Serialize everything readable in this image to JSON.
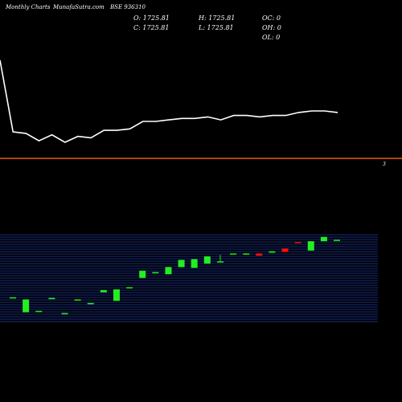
{
  "header": {
    "period": "Monthly Charts",
    "site": "MunafaSutra.com",
    "symbol": "BSE 936310"
  },
  "ohlc": {
    "open": "O: 1725.81",
    "close": "C: 1725.81",
    "high": "H: 1725.81",
    "low": "L: 1725.81",
    "oc": "OC: 0",
    "oh": "OH: 0",
    "ol": "OL: 0"
  },
  "colors": {
    "background": "#000000",
    "line": "#ffffff",
    "divider": "#e06010",
    "up": "#22ee22",
    "down": "#ee1111",
    "grid": "#1f3aa8"
  },
  "chart_data": [
    {
      "type": "line",
      "series": [
        {
          "values": [
            62,
            14,
            13,
            8,
            12,
            7,
            11,
            10,
            15,
            15,
            16,
            21,
            21,
            22,
            23,
            23,
            24,
            22,
            25,
            25,
            24,
            25,
            25,
            27,
            28,
            28,
            27
          ]
        }
      ],
      "ylim": [
        0,
        70
      ]
    },
    {
      "type": "candlestick",
      "label": "3",
      "candles": [
        {
          "open": 1275,
          "high": 1275,
          "low": 1275,
          "close": 1275,
          "dir": "up"
        },
        {
          "open": 1260,
          "high": 1260,
          "low": 1170,
          "close": 1170,
          "dir": "up"
        },
        {
          "open": 1180,
          "high": 1180,
          "low": 1180,
          "close": 1180,
          "dir": "up"
        },
        {
          "open": 1270,
          "high": 1270,
          "low": 1270,
          "close": 1270,
          "dir": "up"
        },
        {
          "open": 1165,
          "high": 1165,
          "low": 1165,
          "close": 1165,
          "dir": "up"
        },
        {
          "open": 1260,
          "high": 1260,
          "low": 1260,
          "close": 1260,
          "dir": "up"
        },
        {
          "open": 1235,
          "high": 1235,
          "low": 1235,
          "close": 1235,
          "dir": "up"
        },
        {
          "open": 1310,
          "high": 1325,
          "low": 1310,
          "close": 1325,
          "dir": "up"
        },
        {
          "open": 1250,
          "high": 1330,
          "low": 1250,
          "close": 1330,
          "dir": "up"
        },
        {
          "open": 1345,
          "high": 1345,
          "low": 1345,
          "close": 1345,
          "dir": "up"
        },
        {
          "open": 1410,
          "high": 1460,
          "low": 1410,
          "close": 1460,
          "dir": "up"
        },
        {
          "open": 1450,
          "high": 1450,
          "low": 1450,
          "close": 1450,
          "dir": "up"
        },
        {
          "open": 1435,
          "high": 1485,
          "low": 1435,
          "close": 1485,
          "dir": "up"
        },
        {
          "open": 1485,
          "high": 1535,
          "low": 1485,
          "close": 1535,
          "dir": "up"
        },
        {
          "open": 1480,
          "high": 1540,
          "low": 1480,
          "close": 1540,
          "dir": "up"
        },
        {
          "open": 1510,
          "high": 1560,
          "low": 1510,
          "close": 1560,
          "dir": "up"
        },
        {
          "open": 1525,
          "high": 1570,
          "low": 1525,
          "close": 1525,
          "dir": "up"
        },
        {
          "open": 1580,
          "high": 1580,
          "low": 1580,
          "close": 1580,
          "dir": "up"
        },
        {
          "open": 1580,
          "high": 1580,
          "low": 1570,
          "close": 1580,
          "dir": "up"
        },
        {
          "open": 1580,
          "high": 1580,
          "low": 1565,
          "close": 1565,
          "dir": "down"
        },
        {
          "open": 1585,
          "high": 1595,
          "low": 1585,
          "close": 1595,
          "dir": "up"
        },
        {
          "open": 1615,
          "high": 1615,
          "low": 1590,
          "close": 1590,
          "dir": "down"
        },
        {
          "open": 1660,
          "high": 1660,
          "low": 1660,
          "close": 1660,
          "dir": "down"
        },
        {
          "open": 1600,
          "high": 1665,
          "low": 1600,
          "close": 1665,
          "dir": "up"
        },
        {
          "open": 1665,
          "high": 1695,
          "low": 1665,
          "close": 1695,
          "dir": "up"
        },
        {
          "open": 1675,
          "high": 1675,
          "low": 1675,
          "close": 1675,
          "dir": "up"
        }
      ],
      "ylim": [
        1100,
        1710
      ]
    }
  ]
}
